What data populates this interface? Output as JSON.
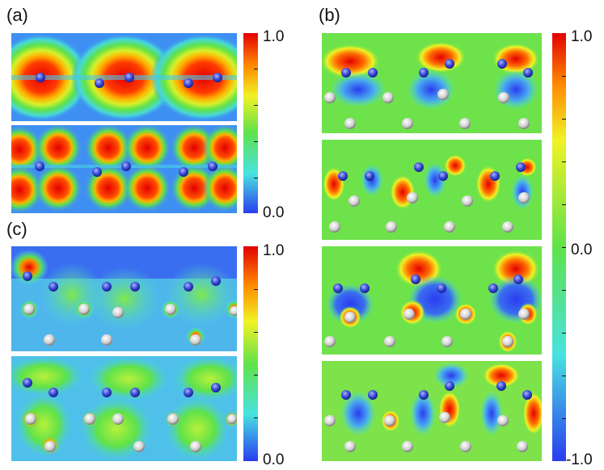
{
  "figure": {
    "labels": {
      "a": "(a)",
      "b": "(b)",
      "c": "(c)"
    },
    "colorbar_a": {
      "max": "1.0",
      "min": "0.0"
    },
    "colorbar_b": {
      "max": "1.0",
      "mid": "0.0",
      "min": "-1.0"
    },
    "colorbar_c": {
      "max": "1.0",
      "min": "0.0"
    },
    "colors": {
      "blue": "#2a3cf0",
      "cyan": "#48e3e0",
      "green": "#5fe24a",
      "yellow": "#f1f224",
      "orange": "#ff8a00",
      "red": "#e30000",
      "atom_blue": "#3b4bd8",
      "atom_white": "#e2e2e2"
    }
  }
}
